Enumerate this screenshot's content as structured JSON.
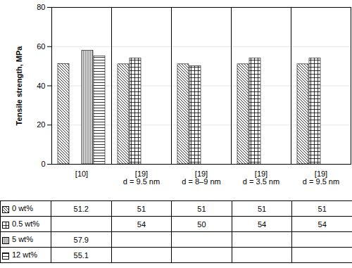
{
  "chart_data": {
    "type": "bar",
    "categories": [
      "[10]",
      "[19]\nd = 9.5 nm",
      "[19]\nd = 8–9 nm",
      "[19]\nd = 3.5 nm",
      "[19]\nd = 9.5 nm"
    ],
    "series": [
      {
        "name": "0 wt%",
        "color": "#000000",
        "values": [
          51.2,
          51,
          51,
          51,
          51
        ]
      },
      {
        "name": "0.5 wt%",
        "color": "#000000",
        "values": [
          null,
          54,
          50,
          54,
          54
        ]
      },
      {
        "name": "5 wt%",
        "color": "#000000",
        "values": [
          57.9,
          null,
          null,
          null,
          null
        ]
      },
      {
        "name": "12 wt%",
        "color": "#000000",
        "values": [
          55.1,
          null,
          null,
          null,
          null
        ]
      }
    ],
    "y_label": "Tensile strength, MPa",
    "ylim": [
      0,
      80
    ],
    "yticks": [
      0,
      20,
      40,
      60,
      80
    ],
    "grid": true
  }
}
